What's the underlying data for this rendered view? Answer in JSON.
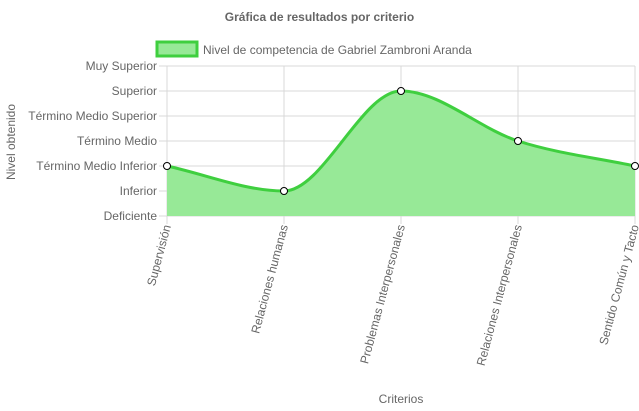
{
  "chart_data": {
    "type": "area",
    "title": "Gráfica de resultados por criterio",
    "xlabel": "Criterios",
    "ylabel": "Nivel obtenido",
    "categories": [
      "Supervisión",
      "Relaciones humanas",
      "Problemas Interpersonales",
      "Relaciones Interpersonales",
      "Sentido Común y Tacto"
    ],
    "y_levels": [
      "Deficiente",
      "Inferior",
      "Término Medio Inferior",
      "Término Medio",
      "Término Medio Superior",
      "Superior",
      "Muy Superior"
    ],
    "series": [
      {
        "name": "Nivel de competencia de Gabriel Zambroni Aranda",
        "values": [
          2,
          1,
          5,
          3,
          2
        ]
      }
    ],
    "ylim": [
      0,
      6
    ],
    "grid": true,
    "legend_position": "top",
    "colors": {
      "line": "#3fcf3f",
      "fill": "#97e997",
      "point_fill": "#ffffff",
      "point_stroke": "#000000",
      "grid": "#d8d8d8"
    }
  }
}
